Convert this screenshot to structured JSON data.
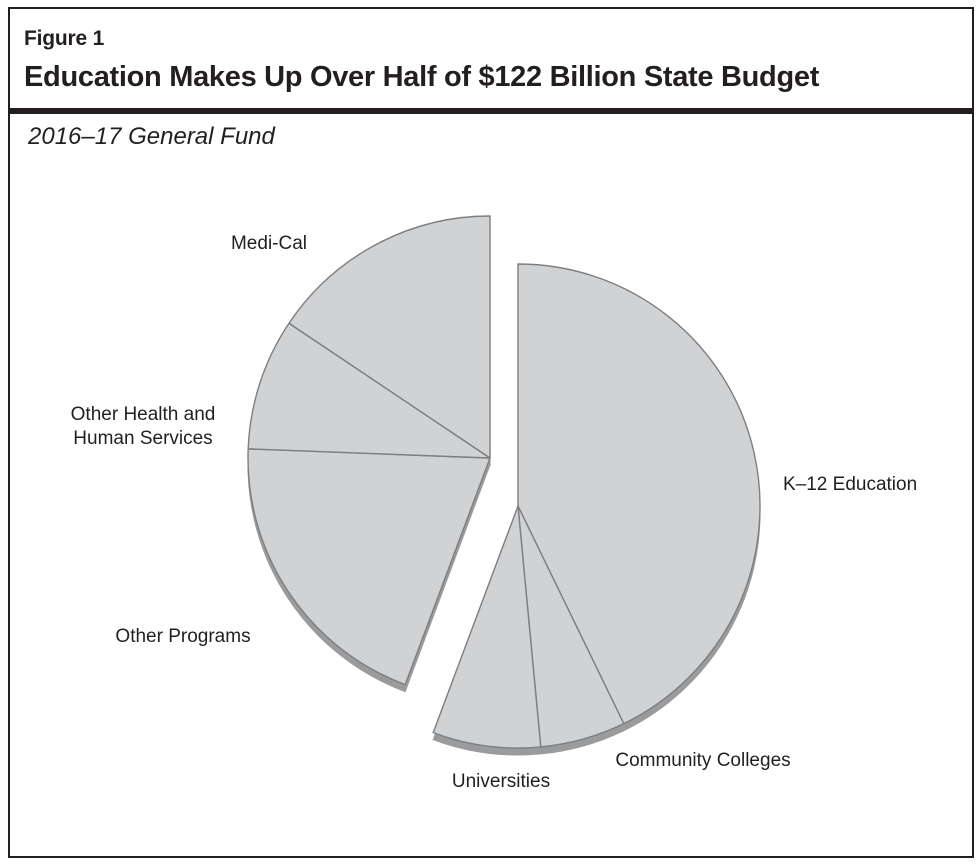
{
  "figure": {
    "label": "Figure 1",
    "title": "Education Makes Up Over Half of $122 Billion State Budget",
    "subtitle": "2016–17 General Fund"
  },
  "chart_data": {
    "type": "pie",
    "title": "Education Makes Up Over Half of $122 Billion State Budget",
    "subtitle": "2016–17 General Fund",
    "exploded_group": [
      "K–12 Education",
      "Community Colleges",
      "Universities"
    ],
    "slices": [
      {
        "label": [
          "K–12 Education"
        ],
        "value": 42.8
      },
      {
        "label": [
          "Community Colleges"
        ],
        "value": 5.7
      },
      {
        "label": [
          "Universities"
        ],
        "value": 7.2
      },
      {
        "label": [
          "Other Programs"
        ],
        "value": 19.9
      },
      {
        "label": [
          "Other Health and",
          "Human Services"
        ],
        "value": 8.8
      },
      {
        "label": [
          "Medi-Cal"
        ],
        "value": 15.6
      }
    ],
    "colors": {
      "fill": "#d1d2d4",
      "side": "#9a9b9d",
      "edge": "#7d7e80",
      "text": "#231f20"
    }
  }
}
